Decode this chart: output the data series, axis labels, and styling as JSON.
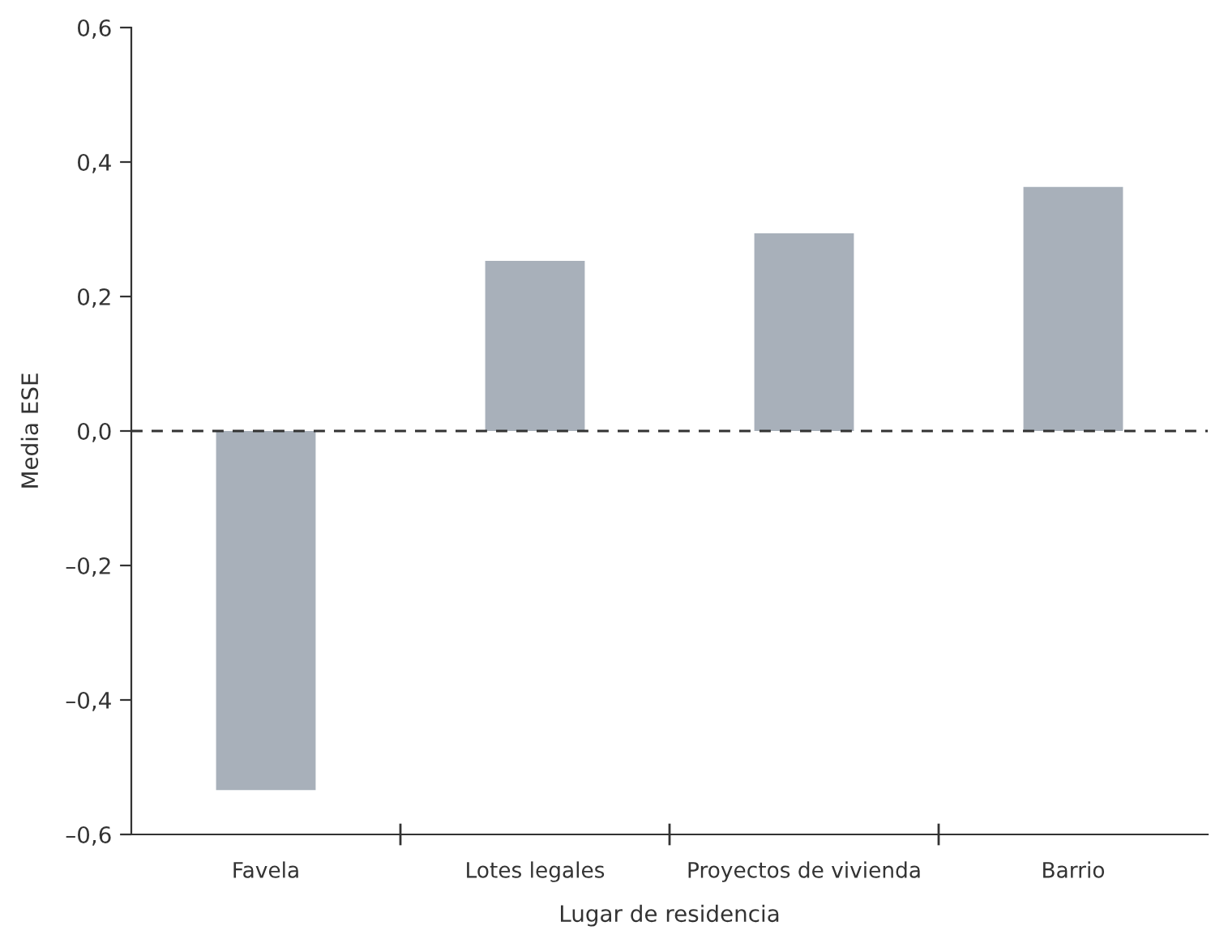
{
  "chart_data": {
    "type": "bar",
    "xlabel": "Lugar de residencia",
    "ylabel": "Media ESE",
    "categories": [
      "Favela",
      "Lotes legales",
      "Proyectos de vivienda",
      "Barrio"
    ],
    "values": [
      -0.534,
      0.253,
      0.294,
      0.363
    ],
    "color": "#a8b0ba",
    "ylim": [
      -0.6,
      0.6
    ],
    "yticks": [
      {
        "value": -0.6,
        "label": "–0,6"
      },
      {
        "value": -0.4,
        "label": "–0,4"
      },
      {
        "value": -0.2,
        "label": "–0,2"
      },
      {
        "value": 0,
        "label": "0,0"
      },
      {
        "value": 0.2,
        "label": "0,2"
      },
      {
        "value": 0.4,
        "label": "0,4"
      },
      {
        "value": 0.6,
        "label": "0,6"
      }
    ],
    "ref_lines": [
      {
        "axis": "y",
        "value": 0,
        "label": null,
        "color": "#333333",
        "line_style": "dashed"
      }
    ],
    "grid": false,
    "legend": false
  }
}
